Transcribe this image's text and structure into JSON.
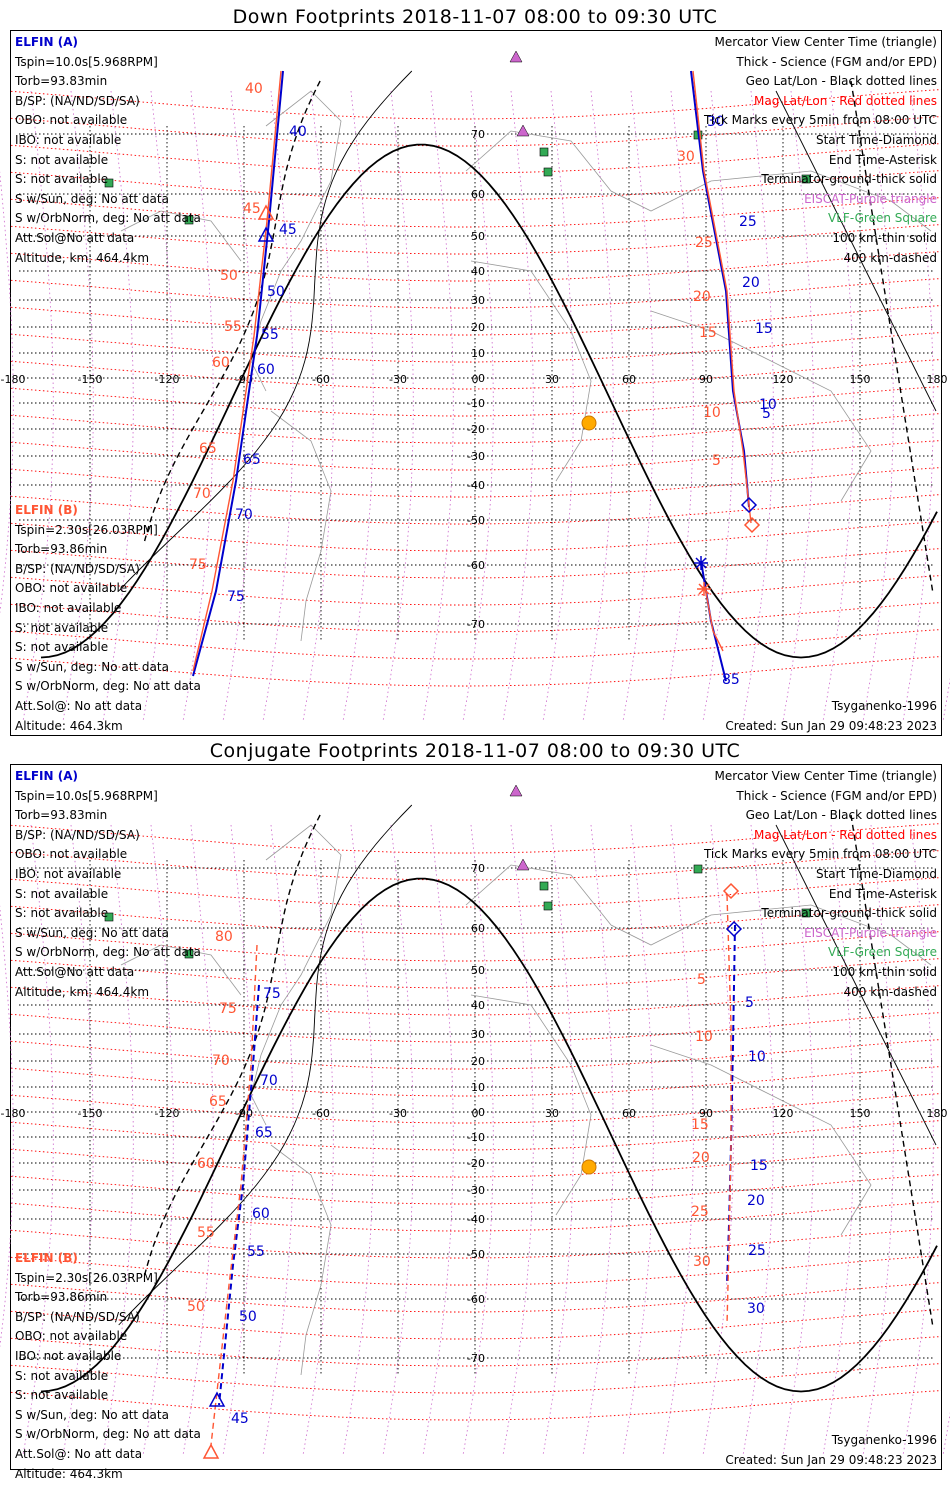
{
  "panels": [
    {
      "title": "Down Footprints 2018-11-07 08:00 to 09:30 UTC",
      "elfin_a": {
        "name": "ELFIN (A)",
        "lines": [
          "Tspin=10.0s[5.968RPM]",
          "Torb=93.83min",
          "B/SP: (NA/ND/SD/SA)",
          "OBO: not available",
          "IBO: not available",
          "S: not available",
          "S: not available",
          "S w/Sun, deg: No att data",
          "S w/OrbNorm, deg: No att data",
          "Att.Sol@No att data",
          "Altitude, km: 464.4km"
        ]
      },
      "elfin_b": {
        "name": "ELFIN (B)",
        "lines": [
          "Tspin=2.30s[26.03RPM]",
          "Torb=93.86min",
          "B/SP: (NA/ND/SD/SA)",
          "OBO: not available",
          "IBO: not available",
          "S: not available",
          "S: not available",
          "S w/Sun, deg: No att data",
          "S w/OrbNorm, deg: No att data",
          "Att.Sol@: No att data",
          "Altitude: 464.3km"
        ]
      },
      "legend": [
        "Mercator View Center Time (triangle)",
        "Thick - Science (FGM and/or EPD)",
        "Geo Lat/Lon - Black dotted lines",
        "Mag Lat/Lon - Red dotted lines",
        "Tick Marks every 5min from 08:00 UTC",
        "Start Time-Diamond",
        "End Time-Asterisk",
        "Terminator-ground-thick solid",
        "EISCAT-Purple triangle",
        "VLF-Green Square",
        "100 km-thin solid",
        "400 km-dashed"
      ],
      "model": "Tsyganenko-1996",
      "created": "Created: Sun Jan 29 09:48:23 2023",
      "track_a_ticks": [
        "40",
        "45",
        "50",
        "55",
        "60",
        "65",
        "70",
        "75",
        "5",
        "10",
        "15",
        "20",
        "25",
        "30",
        "85"
      ],
      "track_b_ticks": [
        "40",
        "45",
        "50",
        "55",
        "60",
        "65",
        "70",
        "75",
        "5",
        "10",
        "15",
        "20",
        "25",
        "30"
      ]
    },
    {
      "title": "Conjugate Footprints 2018-11-07 08:00 to 09:30 UTC",
      "elfin_a": {
        "name": "ELFIN (A)",
        "lines": [
          "Tspin=10.0s[5.968RPM]",
          "Torb=93.83min",
          "B/SP: (NA/ND/SD/SA)",
          "OBO: not available",
          "IBO: not available",
          "S: not available",
          "S: not available",
          "S w/Sun, deg: No att data",
          "S w/OrbNorm, deg: No att data",
          "Att.Sol@No att data",
          "Altitude, km: 464.4km"
        ]
      },
      "elfin_b": {
        "name": "ELFIN (B)",
        "lines": [
          "Tspin=2.30s[26.03RPM]",
          "Torb=93.86min",
          "B/SP: (NA/ND/SD/SA)",
          "OBO: not available",
          "IBO: not available",
          "S: not available",
          "S: not available",
          "S w/Sun, deg: No att data",
          "S w/OrbNorm, deg: No att data",
          "Att.Sol@: No att data",
          "Altitude: 464.3km"
        ]
      },
      "legend": [
        "Mercator View Center Time (triangle)",
        "Thick - Science (FGM and/or EPD)",
        "Geo Lat/Lon - Black dotted lines",
        "Mag Lat/Lon - Red dotted lines",
        "Tick Marks every 5min from 08:00 UTC",
        "Start Time-Diamond",
        "End Time-Asterisk",
        "Terminator-ground-thick solid",
        "EISCAT-Purple triangle",
        "VLF-Green Square",
        "100 km-thin solid",
        "400 km-dashed"
      ],
      "model": "Tsyganenko-1996",
      "created": "Created: Sun Jan 29 09:48:23 2023",
      "track_a_ticks": [
        "75",
        "70",
        "65",
        "60",
        "55",
        "50",
        "45",
        "5",
        "10",
        "15",
        "20",
        "25",
        "30"
      ],
      "track_b_ticks": [
        "80",
        "75",
        "70",
        "65",
        "60",
        "55",
        "50",
        "5",
        "10",
        "15",
        "20",
        "25",
        "30"
      ]
    }
  ],
  "axes": {
    "lon_labels": [
      "-180",
      "-150",
      "-120",
      "-90",
      "-60",
      "-30",
      "0",
      "30",
      "60",
      "90",
      "120",
      "150",
      "180"
    ],
    "lat_labels": [
      "70",
      "60",
      "50",
      "40",
      "30",
      "20",
      "10",
      "0",
      "-10",
      "-20",
      "-30",
      "-40",
      "-50",
      "-60",
      "-70"
    ]
  },
  "colors": {
    "elfin_a": "#0000cc",
    "elfin_b": "#ff5533",
    "mag_grid": "#ff0000",
    "geo_grid": "#000000",
    "eiscat": "#cc66cc",
    "vlf": "#33aa55",
    "sun": "#ffaa00"
  }
}
